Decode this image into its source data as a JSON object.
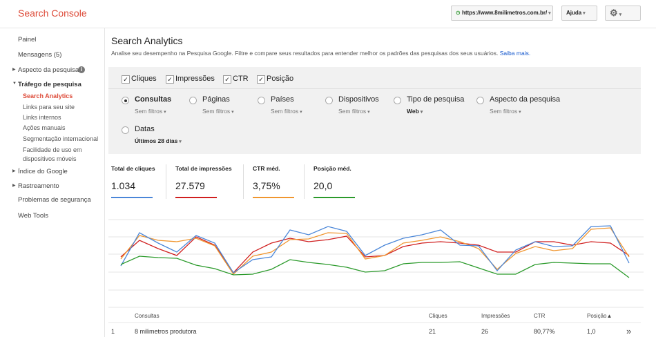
{
  "header": {
    "title": "Search Console",
    "site": "https://www.8milimetros.com.br/",
    "help": "Ajuda"
  },
  "sidebar": {
    "items": [
      "Painel",
      "Mensagens (5)",
      "Aspecto da pesquisa",
      "Tráfego de pesquisa",
      "Índice do Google",
      "Rastreamento",
      "Problemas de segurança",
      "Web Tools"
    ],
    "sub_items": [
      "Search Analytics",
      "Links para seu site",
      "Links internos",
      "Ações manuais",
      "Segmentação internacional",
      "Facilidade de uso em dispositivos móveis"
    ]
  },
  "main": {
    "title": "Search Analytics",
    "description": "Analise seu desempenho na Pesquisa Google. Filtre e compare seus resultados para entender melhor os padrões das pesquisas dos seus usuários.",
    "link": "Saiba mais.",
    "checkboxes": [
      "Cliques",
      "Impressões",
      "CTR",
      "Posição"
    ],
    "dimensions": [
      {
        "label": "Consultas",
        "filter": "Sem filtros"
      },
      {
        "label": "Páginas",
        "filter": "Sem filtros"
      },
      {
        "label": "Países",
        "filter": "Sem filtros"
      },
      {
        "label": "Dispositivos",
        "filter": "Sem filtros"
      },
      {
        "label": "Tipo de pesquisa",
        "filter": "Web"
      },
      {
        "label": "Aspecto da pesquisa",
        "filter": "Sem filtros"
      },
      {
        "label": "Datas",
        "filter": "Últimos 28 dias"
      }
    ],
    "metrics": [
      {
        "label": "Total de cliques",
        "value": "1.034"
      },
      {
        "label": "Total de impressões",
        "value": "27.579"
      },
      {
        "label": "CTR méd.",
        "value": "3,75%"
      },
      {
        "label": "Posição méd.",
        "value": "20,0"
      }
    ],
    "table": {
      "columns": [
        "Consultas",
        "Cliques",
        "Impressões",
        "CTR",
        "Posição▲"
      ],
      "rows": [
        [
          "1",
          "8 milimetros produtora",
          "21",
          "26",
          "80,77%",
          "1,0"
        ]
      ],
      "more": "»"
    }
  }
}
